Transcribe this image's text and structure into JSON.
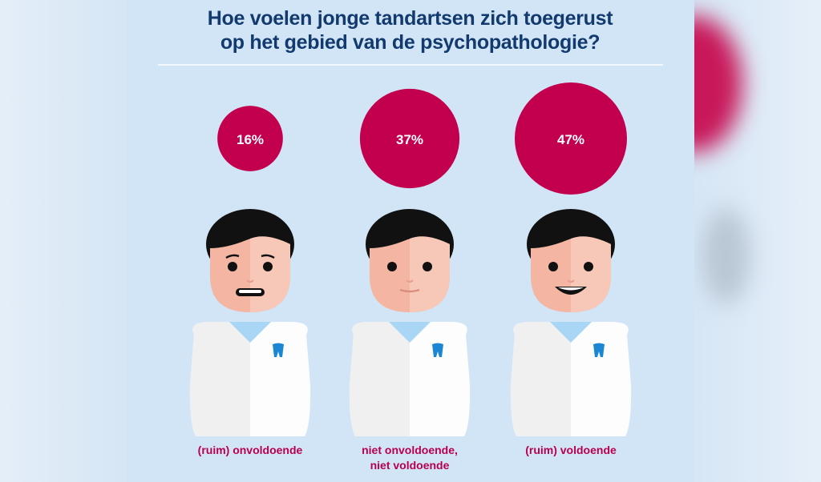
{
  "title_line1": "Hoe voelen jonge tandartsen zich toegerust",
  "title_line2": "op het gebied van de psychopathologie?",
  "colors": {
    "bubble": "#c2004e",
    "title": "#123a6e",
    "label": "#b8004f",
    "background": "#d2e5f7",
    "tooth": "#1b86d1"
  },
  "chart_data": {
    "type": "bubble",
    "title": "Hoe voelen jonge tandartsen zich toegerust op het gebied van de psychopathologie?",
    "categories": [
      "(ruim) onvoldoende",
      "niet onvoldoende, niet voldoende",
      "(ruim) voldoende"
    ],
    "values": [
      16,
      37,
      47
    ],
    "value_labels": [
      "16%",
      "37%",
      "47%"
    ],
    "unit": "%",
    "faces": [
      "worried",
      "neutral",
      "smiling"
    ]
  },
  "labels": [
    {
      "line1": "(ruim) onvoldoende",
      "line2": ""
    },
    {
      "line1": "niet onvoldoende,",
      "line2": "niet voldoende"
    },
    {
      "line1": "(ruim) voldoende",
      "line2": ""
    }
  ]
}
